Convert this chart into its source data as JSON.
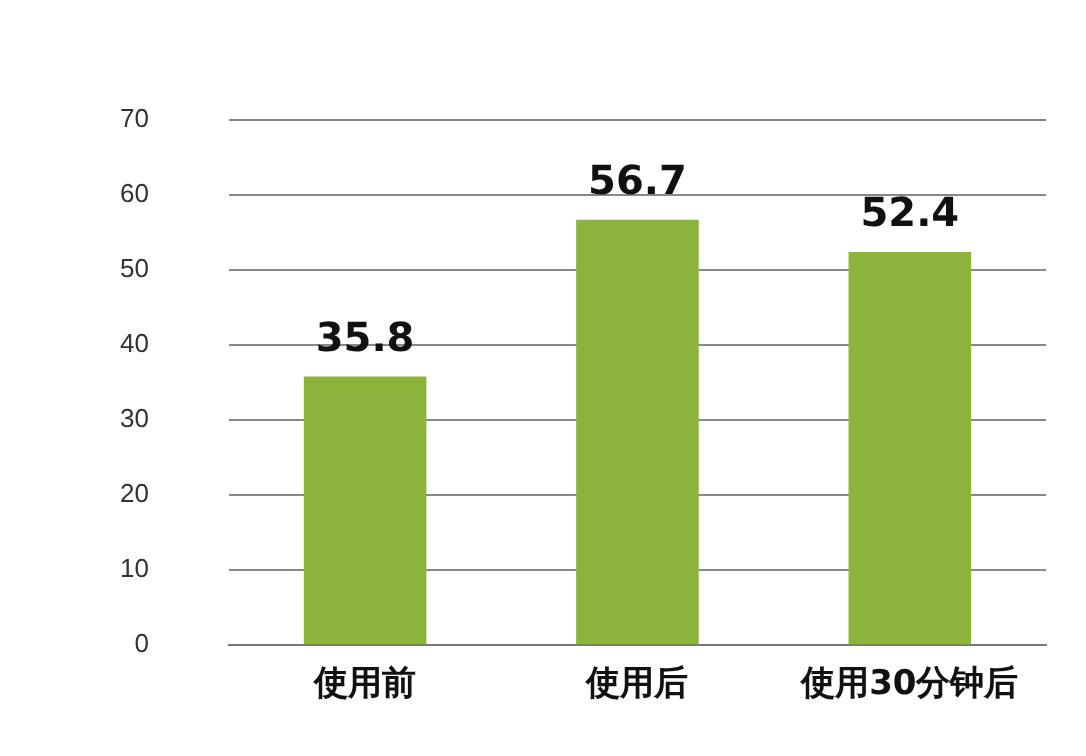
{
  "chart_data": {
    "type": "bar",
    "categories": [
      "使用前",
      "使用后",
      "使用30分钟后"
    ],
    "values": [
      35.8,
      56.7,
      52.4
    ],
    "color": "#8cb33c",
    "ylim": [
      0,
      70
    ],
    "yticks": [
      0,
      10,
      20,
      30,
      40,
      50,
      60,
      70
    ],
    "grid": "y",
    "data_labels": true
  }
}
